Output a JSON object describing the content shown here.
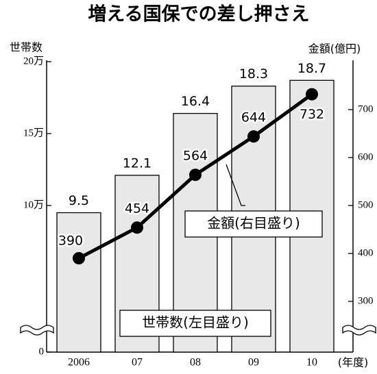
{
  "chart_data": {
    "type": "bar",
    "title": "増える国保での差し押さえ",
    "y_label": "世帯数",
    "y2_label": "金額(億円)",
    "x_label": "(年度)",
    "categories": [
      "2006",
      "07",
      "08",
      "09",
      "10"
    ],
    "series": [
      {
        "name": "世帯数(左目盛り)",
        "type": "bar",
        "color": "#e8e8e8",
        "values": [
          9.5,
          12.1,
          16.4,
          18.3,
          18.7
        ]
      },
      {
        "name": "金額(右目盛り)",
        "type": "line",
        "axis": "y2",
        "color": "#000000",
        "values": [
          390,
          454,
          564,
          644,
          732
        ]
      }
    ],
    "ylim": [
      0,
      20
    ],
    "yticks": [
      0,
      {
        "value": 10,
        "label": "10万"
      },
      {
        "value": 15,
        "label": "15万"
      },
      {
        "value": 20,
        "label": "20万"
      }
    ],
    "y2lim": [
      200,
      800
    ],
    "y2ticks": [
      300,
      400,
      500,
      600,
      700
    ],
    "grid": false
  }
}
